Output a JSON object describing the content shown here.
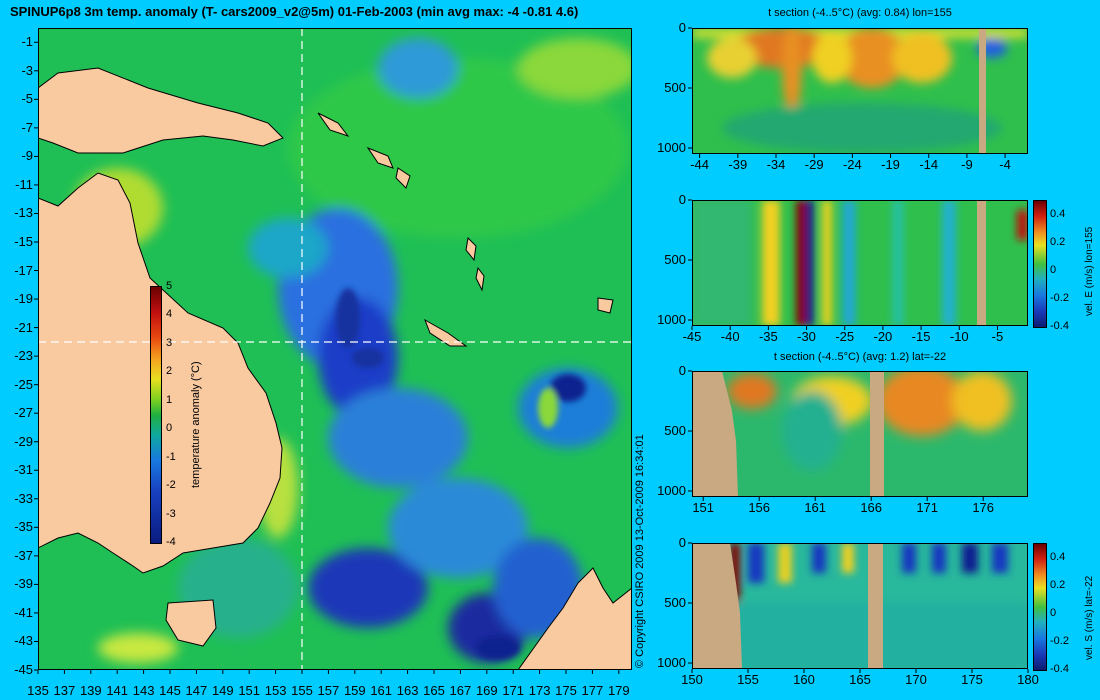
{
  "header": {
    "title": "SPINUP6p8 3m temp. anomaly (T- cars2009_v2@5m) 01-Feb-2003 (min avg max: -4 -0.81 4.6)"
  },
  "copyright": "© Copyright CSIRO 2009   13-Oct-2009 16:34:01",
  "colors": {
    "background": "#00ccff",
    "land": "#f9c9a0",
    "section_land": "#c8a982",
    "crosshair": "#ffffff"
  },
  "chart_data": [
    {
      "type": "heatmap",
      "name": "map",
      "xlim": [
        135,
        180
      ],
      "ylim": [
        -45,
        0
      ],
      "x_ticks": [
        "135",
        "137",
        "139",
        "141",
        "143",
        "145",
        "147",
        "149",
        "151",
        "153",
        "155",
        "157",
        "159",
        "161",
        "163",
        "165",
        "167",
        "169",
        "171",
        "173",
        "175",
        "177",
        "179"
      ],
      "y_ticks": [
        "-1",
        "-3",
        "-5",
        "-7",
        "-9",
        "-11",
        "-13",
        "-15",
        "-17",
        "-19",
        "-21",
        "-23",
        "-25",
        "-27",
        "-29",
        "-31",
        "-33",
        "-35",
        "-37",
        "-39",
        "-41",
        "-43",
        "-45"
      ],
      "crosshair": {
        "lon": 155,
        "lat": -22
      },
      "colorbar": {
        "label": "temperature anomaly (°C)",
        "range": [
          -4,
          5
        ],
        "ticks": [
          "5",
          "4",
          "3",
          "2",
          "1",
          "0",
          "-1",
          "-2",
          "-3",
          "-4"
        ]
      }
    },
    {
      "type": "heatmap",
      "name": "t-section-lon",
      "title": "t section (-4..5°C) (avg: 0.84) lon=155",
      "x_ticks": [
        "-44",
        "-39",
        "-34",
        "-29",
        "-24",
        "-19",
        "-14",
        "-9",
        "-4"
      ],
      "y_ticks": [
        "0",
        "500",
        "1000"
      ],
      "xlim": [
        -45,
        -1
      ],
      "ylim": [
        1050,
        0
      ]
    },
    {
      "type": "heatmap",
      "name": "vel-e-section",
      "x_ticks": [
        "-45",
        "-40",
        "-35",
        "-30",
        "-25",
        "-20",
        "-15",
        "-10",
        "-5"
      ],
      "y_ticks": [
        "0",
        "500",
        "1000"
      ],
      "xlim": [
        -45,
        -1
      ],
      "ylim": [
        1050,
        0
      ],
      "colorbar": {
        "label": "vel. E (m/s) lon=155",
        "range": [
          -0.4,
          0.5
        ],
        "ticks": [
          "0.4",
          "0.2",
          "0",
          "-0.2",
          "-0.4"
        ]
      }
    },
    {
      "type": "heatmap",
      "name": "t-section-lat",
      "title": "t section (-4..5°C) (avg: 1.2) lat=-22",
      "x_ticks": [
        "151",
        "156",
        "161",
        "166",
        "171",
        "176"
      ],
      "y_ticks": [
        "0",
        "500",
        "1000"
      ],
      "xlim": [
        150,
        180
      ],
      "ylim": [
        1050,
        0
      ]
    },
    {
      "type": "heatmap",
      "name": "vel-s-section",
      "x_ticks": [
        "150",
        "155",
        "160",
        "165",
        "170",
        "175",
        "180"
      ],
      "y_ticks": [
        "0",
        "500",
        "1000"
      ],
      "xlim": [
        150,
        180
      ],
      "ylim": [
        1050,
        0
      ],
      "colorbar": {
        "label": "vel. S (m/s) lat=-22",
        "range": [
          -0.4,
          0.5
        ],
        "ticks": [
          "0.4",
          "0.2",
          "0",
          "-0.2",
          "-0.4"
        ]
      }
    }
  ]
}
